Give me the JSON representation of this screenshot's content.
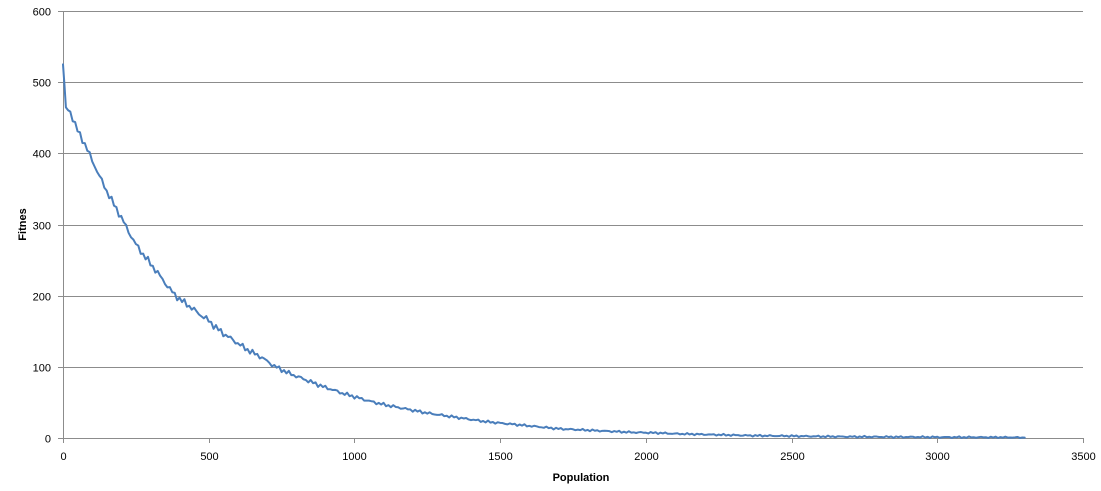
{
  "chart_data": {
    "type": "line",
    "title": "",
    "xlabel": "Population",
    "ylabel": "Fitnes",
    "xlim": [
      0,
      3500
    ],
    "ylim": [
      0,
      600
    ],
    "x_ticks": [
      0,
      500,
      1000,
      1500,
      2000,
      2500,
      3000,
      3500
    ],
    "y_ticks": [
      0,
      100,
      200,
      300,
      400,
      500,
      600
    ],
    "grid": {
      "horizontal": true,
      "vertical": false
    },
    "legend": "none",
    "series_color": "#4a7ebb",
    "series": [
      {
        "x": [
          0,
          10,
          25,
          50,
          75,
          100,
          125,
          150,
          175,
          200,
          225,
          250,
          275,
          300,
          325,
          350,
          375,
          400,
          425,
          450,
          475,
          500,
          525,
          550,
          575,
          600,
          625,
          650,
          675,
          700,
          725,
          750,
          775,
          800,
          825,
          850,
          875,
          900,
          925,
          950,
          975,
          1000,
          1050,
          1100,
          1150,
          1200,
          1250,
          1300,
          1350,
          1400,
          1450,
          1500,
          1550,
          1600,
          1650,
          1700,
          1750,
          1800,
          1850,
          1900,
          1950,
          2000,
          2050,
          2100,
          2150,
          2200,
          2250,
          2300,
          2350,
          2400,
          2450,
          2500,
          2550,
          2600,
          2650,
          2700,
          2750,
          2800,
          2850,
          2900,
          2950,
          3000,
          3050,
          3100,
          3150,
          3200,
          3250,
          3300
        ],
        "y": [
          525,
          465,
          458,
          432,
          413,
          390,
          368,
          347,
          328,
          310,
          290,
          272,
          258,
          245,
          232,
          218,
          205,
          195,
          188,
          180,
          172,
          165,
          155,
          147,
          140,
          133,
          126,
          120,
          115,
          108,
          101,
          96,
          91,
          87,
          83,
          79,
          75,
          71,
          68,
          64,
          61,
          58,
          52,
          47,
          43,
          39,
          35,
          32,
          29,
          26,
          23,
          21,
          19,
          17,
          15,
          13,
          12,
          11,
          10,
          9,
          8,
          7.5,
          7,
          6,
          5.5,
          5,
          4.5,
          4,
          3.5,
          3.2,
          3,
          2.8,
          2.5,
          2.2,
          2,
          1.8,
          1.7,
          1.6,
          1.5,
          1.4,
          1.3,
          1.2,
          1.1,
          1.0,
          1.0,
          0.9,
          0.9,
          0.5
        ]
      }
    ]
  }
}
